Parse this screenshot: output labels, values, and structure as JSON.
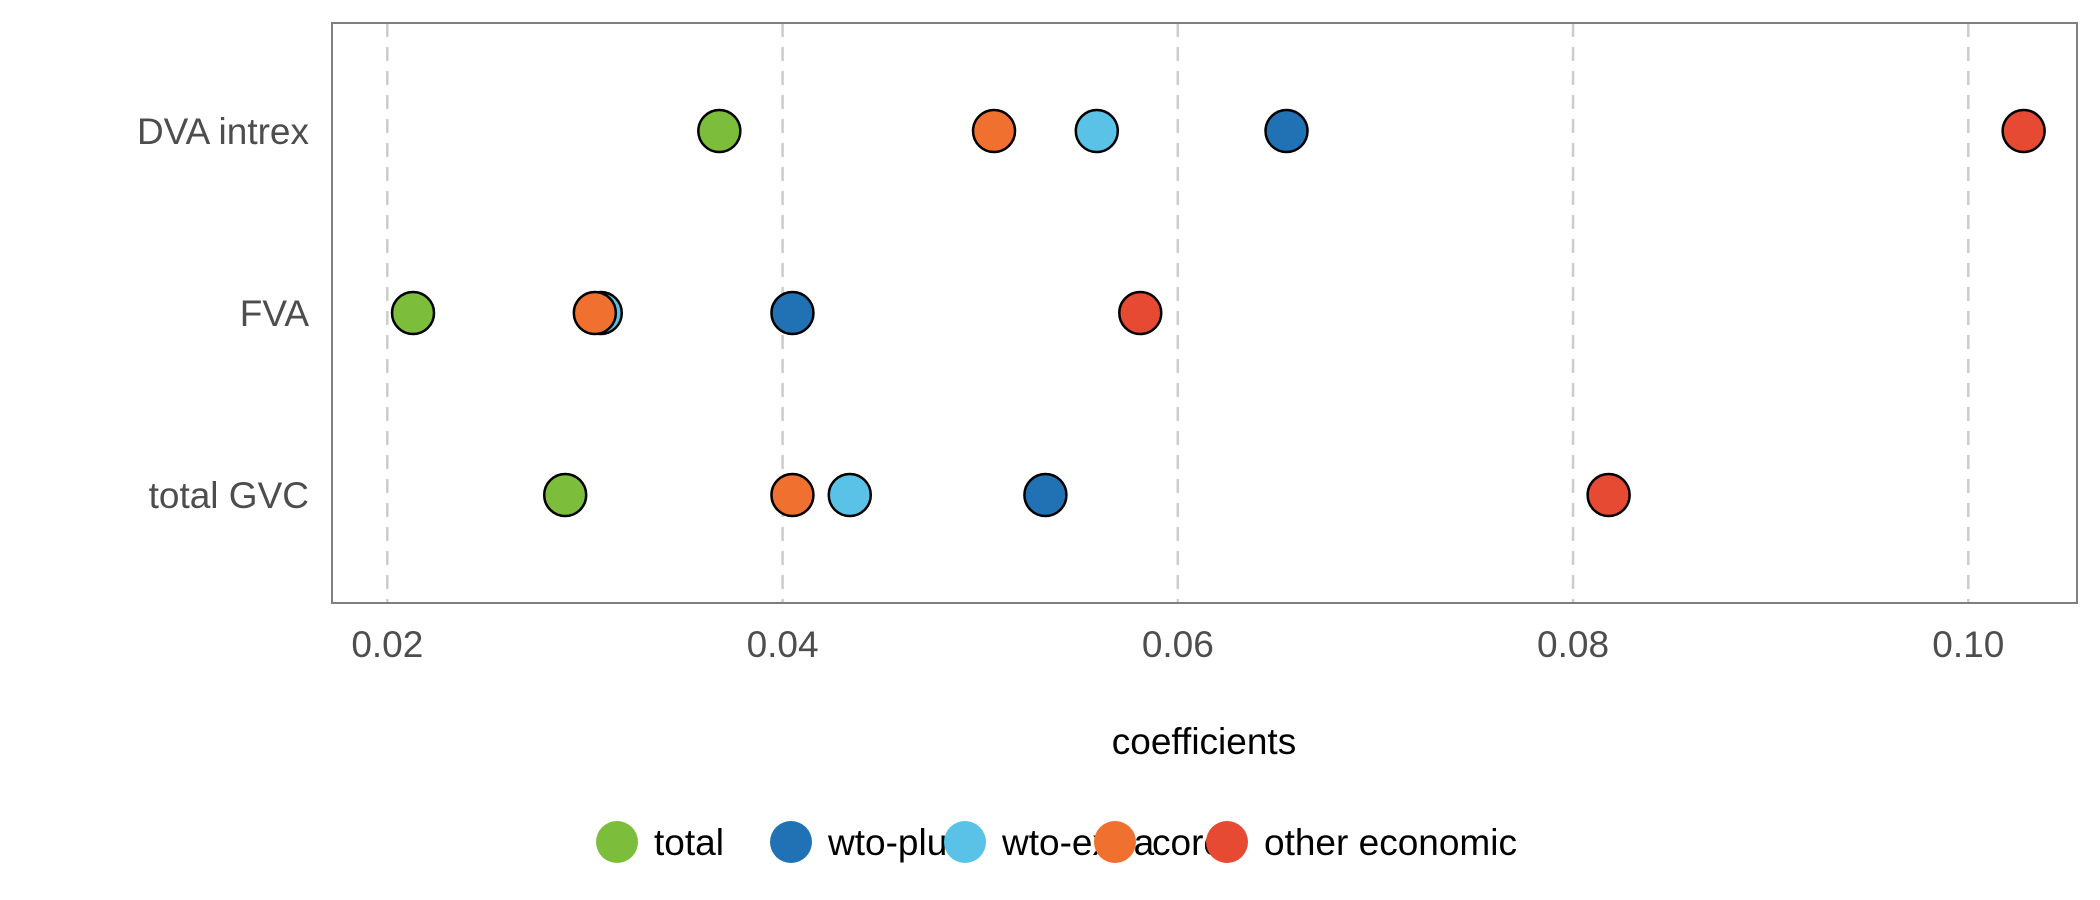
{
  "chart_data": {
    "type": "scatter",
    "title": "",
    "xlabel": "coefficients",
    "ylabel": "",
    "xlim": [
      0.0172,
      0.1055
    ],
    "x_ticks": [
      0.02,
      0.04,
      0.06,
      0.08,
      0.1
    ],
    "x_tick_labels": [
      "0.02",
      "0.04",
      "0.06",
      "0.08",
      "0.10"
    ],
    "categories": [
      "DVA intrex",
      "FVA",
      "total GVC"
    ],
    "grid": "vertical dashed major gridlines",
    "legend_position": "bottom",
    "series": [
      {
        "name": "total",
        "color": "#7cbd3c",
        "values": [
          0.0368,
          0.0213,
          0.029
        ]
      },
      {
        "name": "wto-plus",
        "color": "#2171b5",
        "values": [
          0.0655,
          0.0405,
          0.0533
        ]
      },
      {
        "name": "wto-extra",
        "color": "#5bc2e7",
        "values": [
          0.0559,
          0.0308,
          0.0434
        ]
      },
      {
        "name": "core",
        "color": "#f07030",
        "values": [
          0.0507,
          0.0305,
          0.0405
        ]
      },
      {
        "name": "other economic",
        "color": "#e64a32",
        "values": [
          0.1028,
          0.0581,
          0.0818
        ]
      }
    ]
  }
}
